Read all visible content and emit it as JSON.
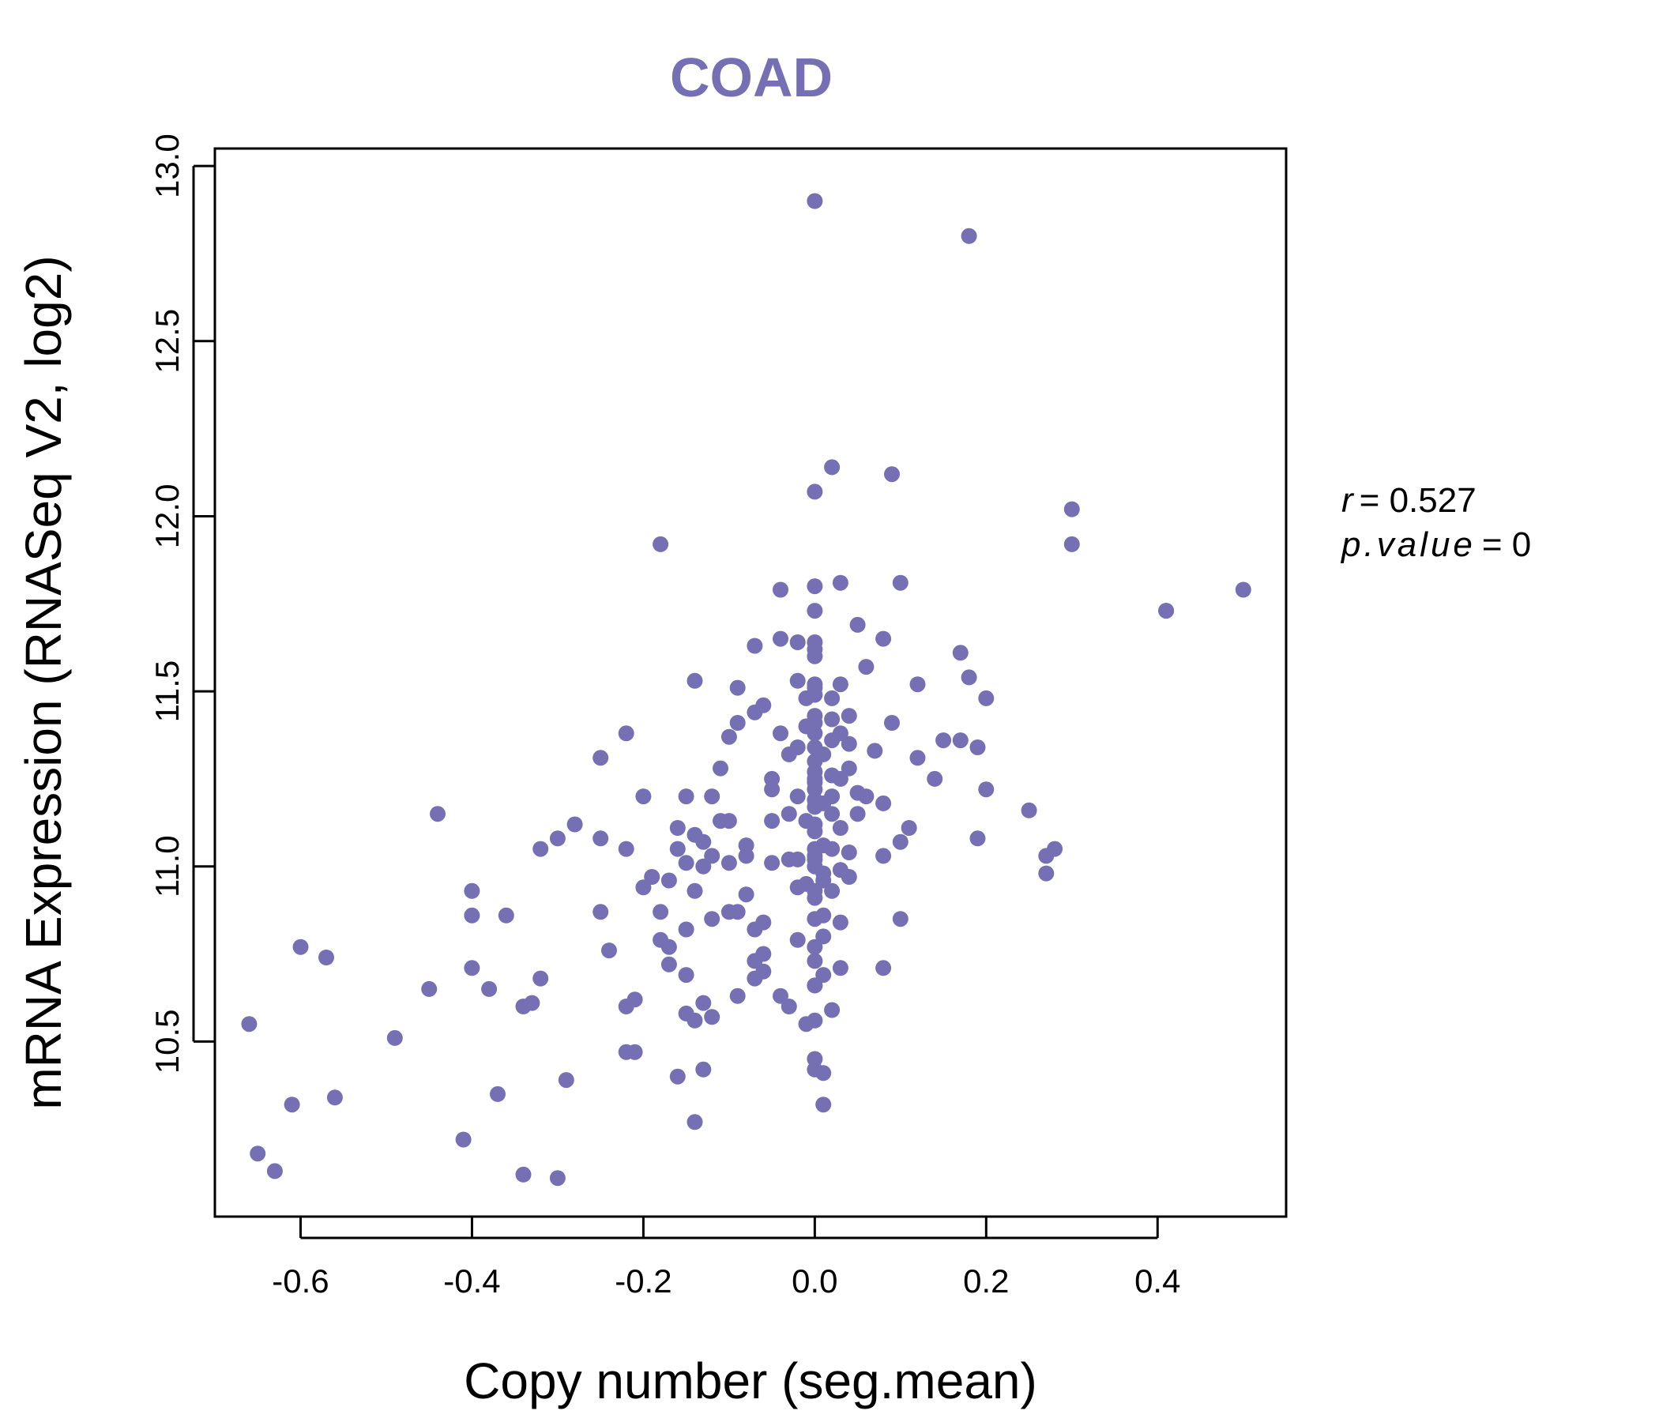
{
  "chart_data": {
    "type": "scatter",
    "title": "COAD",
    "xlabel": "Copy number (seg.mean)",
    "ylabel": "mRNA Expression (RNASeq V2, log2)",
    "xlim": [
      -0.7,
      0.55
    ],
    "ylim": [
      10.0,
      13.05
    ],
    "xticks": [
      "-0.6",
      "-0.4",
      "-0.2",
      "0.0",
      "0.2",
      "0.4"
    ],
    "yticks": [
      "10.5",
      "11.0",
      "11.5",
      "12.0",
      "12.5",
      "13.0"
    ],
    "grid": false,
    "point_color": "#7570B3",
    "annotations": {
      "r_label": "r",
      "r_value": "= 0.527",
      "p_label": "p.value",
      "p_value": "= 0"
    },
    "points": [
      [
        -0.66,
        10.55
      ],
      [
        -0.65,
        10.18
      ],
      [
        -0.63,
        10.13
      ],
      [
        -0.61,
        10.32
      ],
      [
        -0.6,
        10.77
      ],
      [
        -0.57,
        10.74
      ],
      [
        -0.56,
        10.34
      ],
      [
        -0.49,
        10.51
      ],
      [
        -0.45,
        10.65
      ],
      [
        -0.44,
        11.15
      ],
      [
        -0.41,
        10.22
      ],
      [
        -0.4,
        10.93
      ],
      [
        -0.4,
        10.86
      ],
      [
        -0.4,
        10.71
      ],
      [
        -0.38,
        10.65
      ],
      [
        -0.37,
        10.35
      ],
      [
        -0.36,
        10.86
      ],
      [
        -0.34,
        10.6
      ],
      [
        -0.34,
        10.12
      ],
      [
        -0.33,
        10.61
      ],
      [
        -0.32,
        10.68
      ],
      [
        -0.32,
        11.05
      ],
      [
        -0.3,
        11.08
      ],
      [
        -0.3,
        10.11
      ],
      [
        -0.29,
        10.39
      ],
      [
        -0.28,
        11.12
      ],
      [
        -0.25,
        11.31
      ],
      [
        -0.25,
        11.08
      ],
      [
        -0.25,
        10.87
      ],
      [
        -0.24,
        10.76
      ],
      [
        -0.22,
        10.6
      ],
      [
        -0.22,
        11.38
      ],
      [
        -0.22,
        11.05
      ],
      [
        -0.22,
        10.47
      ],
      [
        -0.21,
        10.62
      ],
      [
        -0.21,
        10.47
      ],
      [
        -0.2,
        10.94
      ],
      [
        -0.2,
        11.2
      ],
      [
        -0.19,
        10.97
      ],
      [
        -0.18,
        10.87
      ],
      [
        -0.18,
        11.92
      ],
      [
        -0.18,
        10.79
      ],
      [
        -0.17,
        10.77
      ],
      [
        -0.17,
        10.72
      ],
      [
        -0.17,
        10.96
      ],
      [
        -0.16,
        11.05
      ],
      [
        -0.16,
        10.4
      ],
      [
        -0.16,
        11.11
      ],
      [
        -0.15,
        11.2
      ],
      [
        -0.15,
        10.69
      ],
      [
        -0.15,
        10.58
      ],
      [
        -0.15,
        10.82
      ],
      [
        -0.15,
        11.01
      ],
      [
        -0.14,
        10.56
      ],
      [
        -0.14,
        10.93
      ],
      [
        -0.14,
        10.27
      ],
      [
        -0.14,
        11.53
      ],
      [
        -0.14,
        11.09
      ],
      [
        -0.13,
        10.42
      ],
      [
        -0.13,
        11.0
      ],
      [
        -0.13,
        10.61
      ],
      [
        -0.13,
        11.07
      ],
      [
        -0.12,
        10.85
      ],
      [
        -0.12,
        10.57
      ],
      [
        -0.12,
        11.03
      ],
      [
        -0.12,
        11.2
      ],
      [
        -0.11,
        11.28
      ],
      [
        -0.11,
        11.13
      ],
      [
        -0.1,
        11.37
      ],
      [
        -0.1,
        10.87
      ],
      [
        -0.1,
        11.13
      ],
      [
        -0.1,
        11.01
      ],
      [
        -0.09,
        10.87
      ],
      [
        -0.09,
        11.41
      ],
      [
        -0.09,
        11.51
      ],
      [
        -0.09,
        10.63
      ],
      [
        -0.08,
        11.03
      ],
      [
        -0.08,
        10.92
      ],
      [
        -0.08,
        11.06
      ],
      [
        -0.07,
        10.73
      ],
      [
        -0.07,
        11.44
      ],
      [
        -0.07,
        10.82
      ],
      [
        -0.07,
        10.68
      ],
      [
        -0.07,
        11.63
      ],
      [
        -0.06,
        11.46
      ],
      [
        -0.06,
        10.7
      ],
      [
        -0.06,
        10.84
      ],
      [
        -0.06,
        10.75
      ],
      [
        -0.05,
        11.22
      ],
      [
        -0.05,
        11.25
      ],
      [
        -0.05,
        11.01
      ],
      [
        -0.05,
        11.13
      ],
      [
        -0.04,
        10.63
      ],
      [
        -0.04,
        11.38
      ],
      [
        -0.04,
        11.79
      ],
      [
        -0.04,
        11.65
      ],
      [
        -0.03,
        11.32
      ],
      [
        -0.03,
        11.02
      ],
      [
        -0.03,
        11.15
      ],
      [
        -0.03,
        10.6
      ],
      [
        -0.02,
        11.53
      ],
      [
        -0.02,
        11.34
      ],
      [
        -0.02,
        11.64
      ],
      [
        -0.02,
        11.02
      ],
      [
        -0.02,
        11.2
      ],
      [
        -0.02,
        10.94
      ],
      [
        -0.02,
        10.79
      ],
      [
        -0.01,
        10.55
      ],
      [
        -0.01,
        11.4
      ],
      [
        -0.01,
        11.13
      ],
      [
        -0.01,
        11.48
      ],
      [
        -0.01,
        10.95
      ],
      [
        0.0,
        11.73
      ],
      [
        0.0,
        11.64
      ],
      [
        0.0,
        10.77
      ],
      [
        0.0,
        11.43
      ],
      [
        0.0,
        11.34
      ],
      [
        0.0,
        11.24
      ],
      [
        0.0,
        10.66
      ],
      [
        0.0,
        10.45
      ],
      [
        0.0,
        11.19
      ],
      [
        0.0,
        11.05
      ],
      [
        0.0,
        10.93
      ],
      [
        0.0,
        11.6
      ],
      [
        0.0,
        11.49
      ],
      [
        0.0,
        11.3
      ],
      [
        0.0,
        11.22
      ],
      [
        0.0,
        11.1
      ],
      [
        0.0,
        11.02
      ],
      [
        0.0,
        10.85
      ],
      [
        0.0,
        10.66
      ],
      [
        0.0,
        10.42
      ],
      [
        0.0,
        11.52
      ],
      [
        0.0,
        11.41
      ],
      [
        0.0,
        11.27
      ],
      [
        0.0,
        11.17
      ],
      [
        0.0,
        11.0
      ],
      [
        0.0,
        10.91
      ],
      [
        0.0,
        10.73
      ],
      [
        0.0,
        10.56
      ],
      [
        0.0,
        12.9
      ],
      [
        0.0,
        12.07
      ],
      [
        0.0,
        11.8
      ],
      [
        0.0,
        11.62
      ],
      [
        0.0,
        11.51
      ],
      [
        0.0,
        11.38
      ],
      [
        0.0,
        11.25
      ],
      [
        0.0,
        11.12
      ],
      [
        0.0,
        11.03
      ],
      [
        0.01,
        10.96
      ],
      [
        0.01,
        10.86
      ],
      [
        0.01,
        10.8
      ],
      [
        0.01,
        10.69
      ],
      [
        0.01,
        10.41
      ],
      [
        0.01,
        10.32
      ],
      [
        0.01,
        11.32
      ],
      [
        0.01,
        11.18
      ],
      [
        0.01,
        11.06
      ],
      [
        0.01,
        10.98
      ],
      [
        0.02,
        12.14
      ],
      [
        0.02,
        11.48
      ],
      [
        0.02,
        11.36
      ],
      [
        0.02,
        11.26
      ],
      [
        0.02,
        11.15
      ],
      [
        0.02,
        10.93
      ],
      [
        0.02,
        10.59
      ],
      [
        0.02,
        11.42
      ],
      [
        0.02,
        11.2
      ],
      [
        0.02,
        11.05
      ],
      [
        0.03,
        11.81
      ],
      [
        0.03,
        11.52
      ],
      [
        0.03,
        11.38
      ],
      [
        0.03,
        11.25
      ],
      [
        0.03,
        11.11
      ],
      [
        0.03,
        10.99
      ],
      [
        0.03,
        10.84
      ],
      [
        0.03,
        10.71
      ],
      [
        0.04,
        11.35
      ],
      [
        0.04,
        11.04
      ],
      [
        0.04,
        10.97
      ],
      [
        0.04,
        11.43
      ],
      [
        0.04,
        11.28
      ],
      [
        0.05,
        11.69
      ],
      [
        0.05,
        11.15
      ],
      [
        0.05,
        11.21
      ],
      [
        0.06,
        11.57
      ],
      [
        0.06,
        11.2
      ],
      [
        0.07,
        11.33
      ],
      [
        0.08,
        10.71
      ],
      [
        0.08,
        11.65
      ],
      [
        0.08,
        11.03
      ],
      [
        0.08,
        11.18
      ],
      [
        0.09,
        12.12
      ],
      [
        0.09,
        11.41
      ],
      [
        0.1,
        10.85
      ],
      [
        0.1,
        11.07
      ],
      [
        0.1,
        11.81
      ],
      [
        0.11,
        11.11
      ],
      [
        0.12,
        11.31
      ],
      [
        0.12,
        11.52
      ],
      [
        0.14,
        11.25
      ],
      [
        0.15,
        11.36
      ],
      [
        0.17,
        11.61
      ],
      [
        0.17,
        11.36
      ],
      [
        0.18,
        12.8
      ],
      [
        0.18,
        11.54
      ],
      [
        0.19,
        11.34
      ],
      [
        0.19,
        11.08
      ],
      [
        0.2,
        11.48
      ],
      [
        0.2,
        11.22
      ],
      [
        0.25,
        11.16
      ],
      [
        0.27,
        10.98
      ],
      [
        0.27,
        11.03
      ],
      [
        0.28,
        11.05
      ],
      [
        0.3,
        12.02
      ],
      [
        0.3,
        11.92
      ],
      [
        0.41,
        11.73
      ],
      [
        0.41,
        11.73
      ],
      [
        0.5,
        11.79
      ]
    ]
  }
}
